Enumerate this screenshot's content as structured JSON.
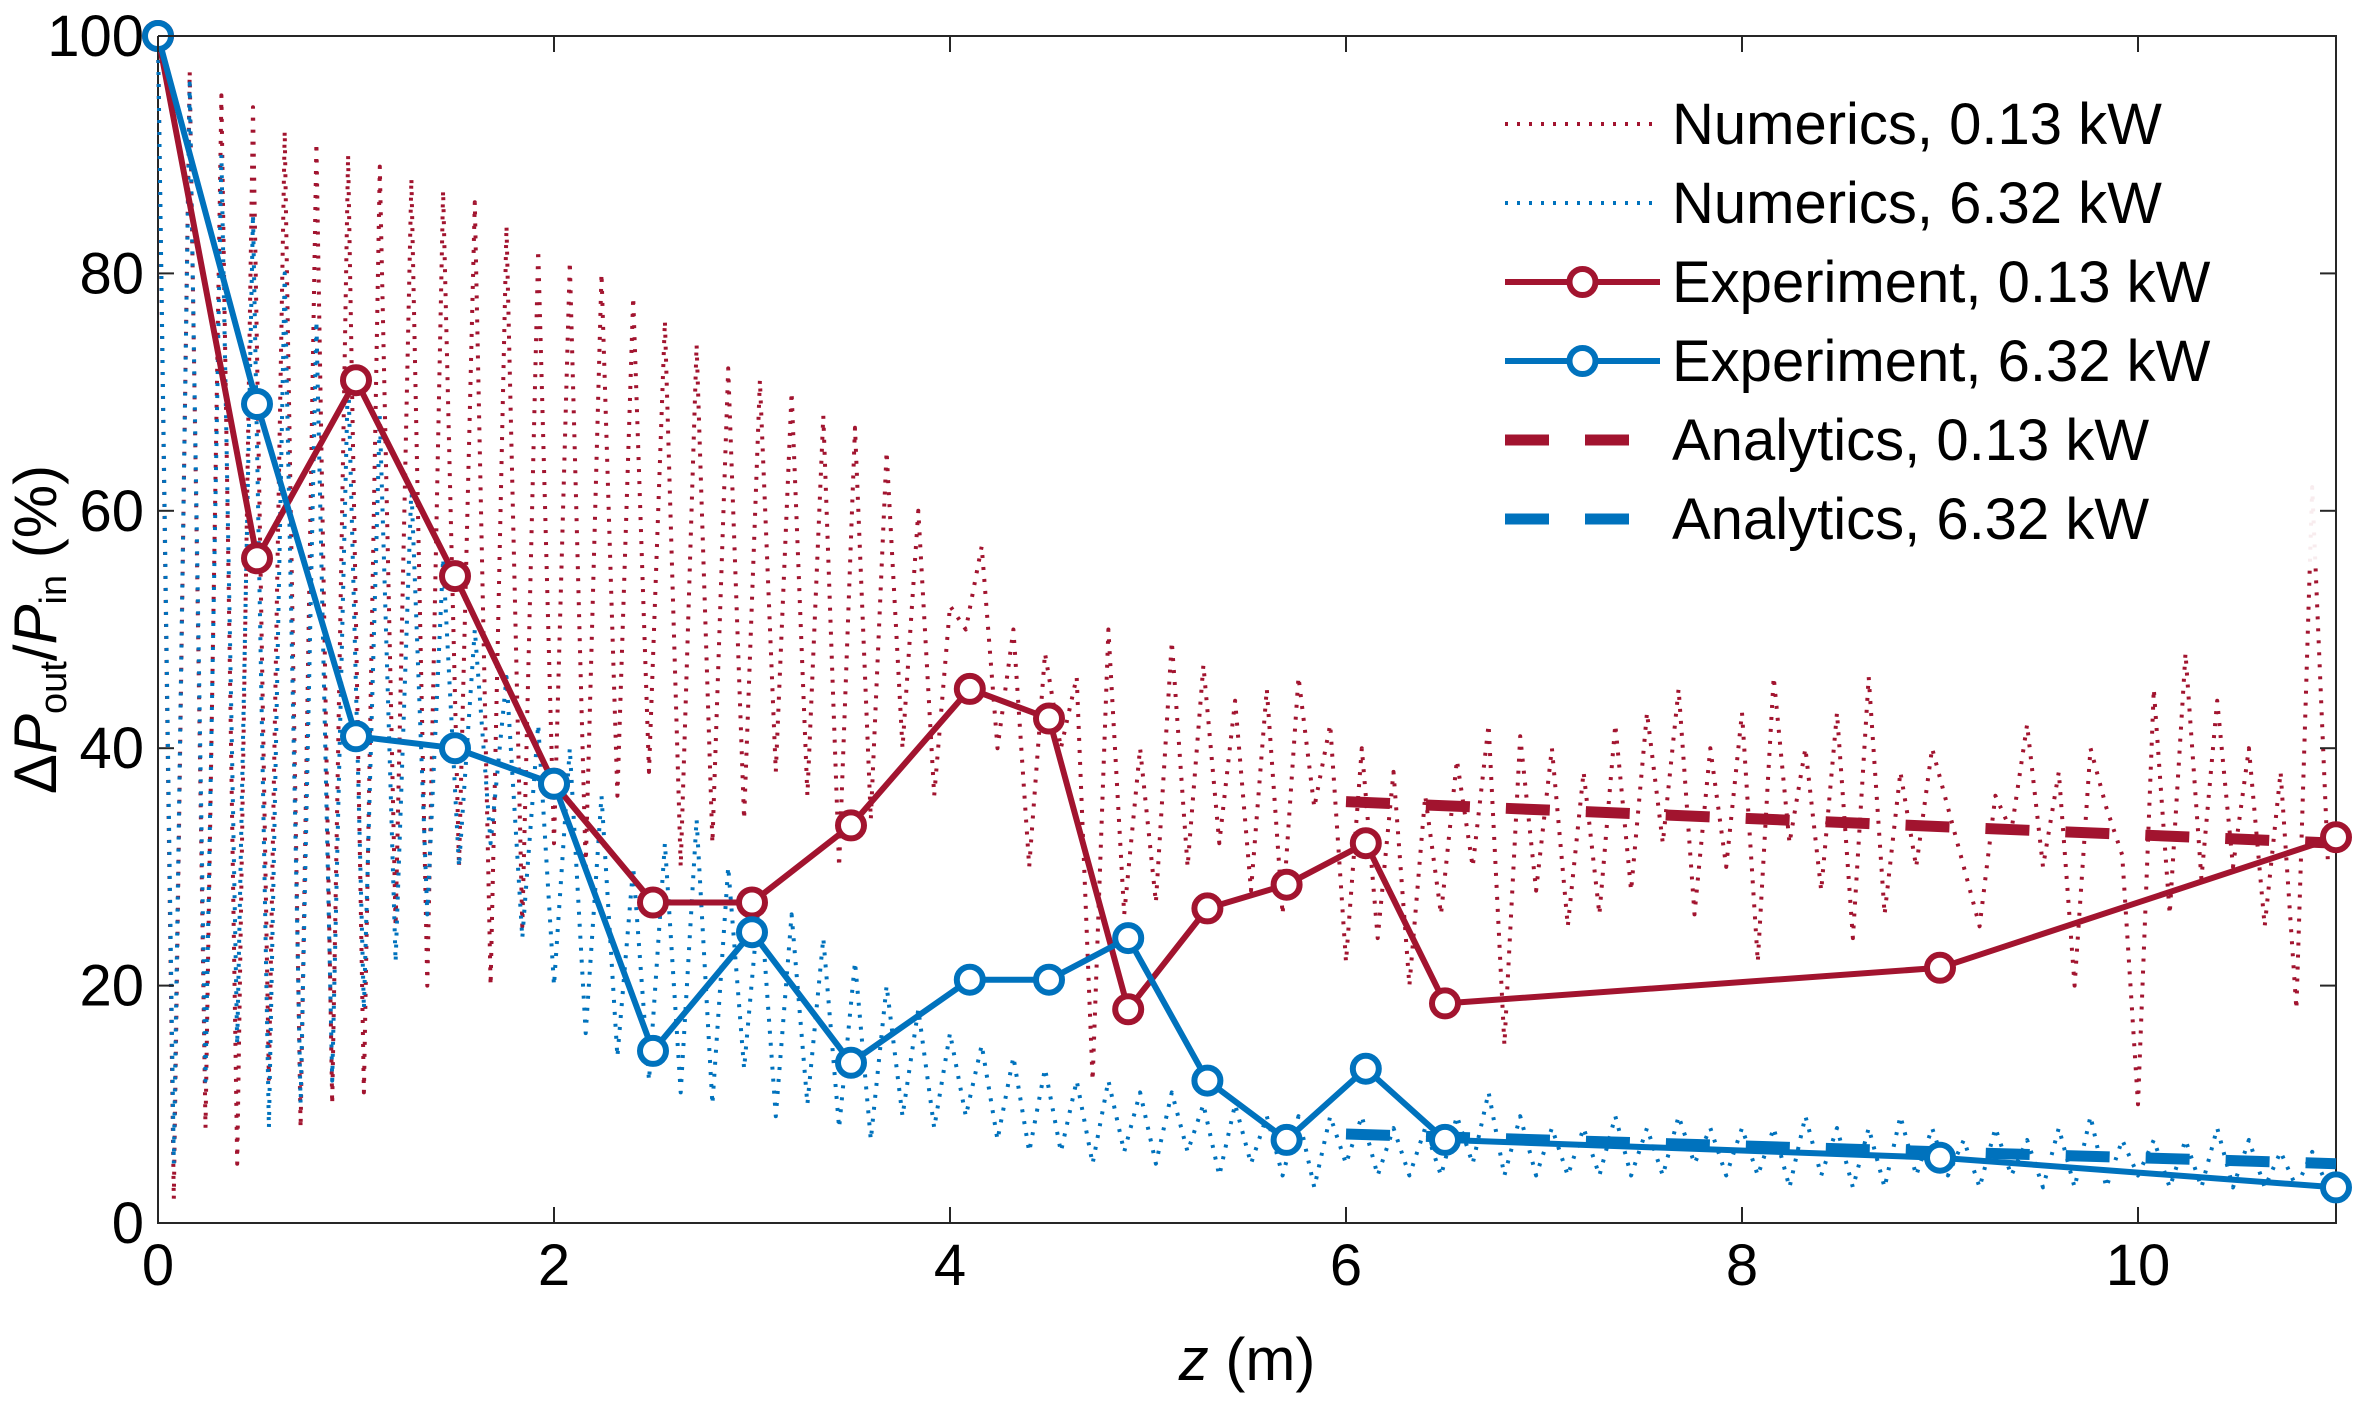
{
  "chart_data": {
    "type": "line",
    "xlabel": {
      "var": "z",
      "rest": " (m)"
    },
    "ylabel": {
      "delta": "Δ",
      "p1": "P",
      "sub1": "out",
      "slash": "/",
      "p2": "P",
      "sub2": "in",
      "rest": " (%)"
    },
    "xlim": [
      0,
      11
    ],
    "ylim": [
      0,
      100
    ],
    "xticks": [
      0,
      2,
      4,
      6,
      8,
      10
    ],
    "yticks": [
      0,
      20,
      40,
      60,
      80,
      100
    ],
    "grid": false,
    "legend_position": "top-right",
    "colors": {
      "red": "#a2142f",
      "blue": "#0072bd"
    },
    "series": [
      {
        "name": "Numerics, 0.13 kW",
        "style": "dotted",
        "color": "#a2142f",
        "x": [
          0,
          0.08,
          0.16,
          0.24,
          0.32,
          0.4,
          0.48,
          0.56,
          0.64,
          0.72,
          0.8,
          0.88,
          0.96,
          1.04,
          1.12,
          1.2,
          1.28,
          1.36,
          1.44,
          1.52,
          1.6,
          1.68,
          1.76,
          1.84,
          1.92,
          2.0,
          2.08,
          2.16,
          2.24,
          2.32,
          2.4,
          2.48,
          2.56,
          2.64,
          2.72,
          2.8,
          2.88,
          2.96,
          3.04,
          3.12,
          3.2,
          3.28,
          3.36,
          3.44,
          3.52,
          3.6,
          3.68,
          3.76,
          3.84,
          3.92,
          4.0,
          4.08,
          4.16,
          4.24,
          4.32,
          4.4,
          4.48,
          4.56,
          4.64,
          4.72,
          4.8,
          4.88,
          4.96,
          5.04,
          5.12,
          5.2,
          5.28,
          5.36,
          5.44,
          5.52,
          5.6,
          5.68,
          5.76,
          5.84,
          5.92,
          6.0,
          6.08,
          6.16,
          6.24,
          6.32,
          6.4,
          6.48,
          6.56,
          6.64,
          6.72,
          6.8,
          6.88,
          6.96,
          7.04,
          7.12,
          7.2,
          7.28,
          7.36,
          7.44,
          7.52,
          7.6,
          7.68,
          7.76,
          7.84,
          7.92,
          8.0,
          8.08,
          8.16,
          8.24,
          8.32,
          8.4,
          8.48,
          8.56,
          8.64,
          8.72,
          8.8,
          8.88,
          8.96,
          9.04,
          9.12,
          9.2,
          9.28,
          9.36,
          9.44,
          9.52,
          9.6,
          9.68,
          9.76,
          9.84,
          9.92,
          10.0,
          10.08,
          10.16,
          10.24,
          10.32,
          10.4,
          10.48,
          10.56,
          10.64,
          10.72,
          10.8,
          10.88,
          10.96
        ],
        "y": [
          100,
          2,
          97,
          8,
          95,
          5,
          94,
          12,
          92,
          8,
          91,
          10,
          90,
          11,
          89,
          25,
          88,
          20,
          87,
          30,
          86,
          20,
          84,
          25,
          82,
          32,
          81,
          30,
          80,
          36,
          78,
          38,
          76,
          30,
          74,
          32,
          72,
          34,
          71,
          38,
          70,
          36,
          68,
          30,
          67,
          34,
          65,
          40,
          60,
          36,
          52,
          50,
          57,
          40,
          50,
          30,
          48,
          40,
          46,
          12,
          50,
          26,
          40,
          27,
          49,
          30,
          47,
          32,
          44,
          28,
          45,
          26,
          46,
          35,
          42,
          22,
          40,
          24,
          38,
          20,
          36,
          26,
          39,
          30,
          42,
          15,
          41,
          28,
          40,
          25,
          38,
          26,
          42,
          28,
          43,
          32,
          45,
          26,
          40,
          30,
          43,
          22,
          46,
          32,
          40,
          28,
          43,
          24,
          46,
          26,
          38,
          30,
          40,
          35,
          30,
          25,
          36,
          33,
          42,
          30,
          38,
          20,
          40,
          35,
          31,
          10,
          45,
          26,
          48,
          29,
          44,
          30,
          40,
          25,
          38,
          18,
          62,
          30
        ]
      },
      {
        "name": "Numerics, 6.32 kW",
        "style": "dotted",
        "color": "#0072bd",
        "x": [
          0,
          0.08,
          0.16,
          0.24,
          0.32,
          0.4,
          0.48,
          0.56,
          0.64,
          0.72,
          0.8,
          0.88,
          0.96,
          1.04,
          1.12,
          1.2,
          1.28,
          1.36,
          1.44,
          1.52,
          1.6,
          1.68,
          1.76,
          1.84,
          1.92,
          2.0,
          2.08,
          2.16,
          2.24,
          2.32,
          2.4,
          2.48,
          2.56,
          2.64,
          2.72,
          2.8,
          2.88,
          2.96,
          3.04,
          3.12,
          3.2,
          3.28,
          3.36,
          3.44,
          3.52,
          3.6,
          3.68,
          3.76,
          3.84,
          3.92,
          4.0,
          4.08,
          4.16,
          4.24,
          4.32,
          4.4,
          4.48,
          4.56,
          4.64,
          4.72,
          4.8,
          4.88,
          4.96,
          5.04,
          5.12,
          5.2,
          5.28,
          5.36,
          5.44,
          5.52,
          5.6,
          5.68,
          5.76,
          5.84,
          5.92,
          6.0,
          6.08,
          6.16,
          6.24,
          6.32,
          6.4,
          6.48,
          6.56,
          6.64,
          6.72,
          6.8,
          6.88,
          6.96,
          7.04,
          7.12,
          7.2,
          7.28,
          7.36,
          7.44,
          7.52,
          7.6,
          7.68,
          7.76,
          7.84,
          7.92,
          8.0,
          8.08,
          8.16,
          8.24,
          8.32,
          8.4,
          8.48,
          8.56,
          8.64,
          8.72,
          8.8,
          8.88,
          8.96,
          9.04,
          9.12,
          9.2,
          9.28,
          9.36,
          9.44,
          9.52,
          9.6,
          9.68,
          9.76,
          9.84,
          9.92,
          10.0,
          10.08,
          10.16,
          10.24,
          10.32,
          10.4,
          10.48,
          10.56,
          10.64,
          10.72,
          10.8,
          10.88,
          10.96
        ],
        "y": [
          100,
          5,
          96,
          12,
          90,
          15,
          85,
          8,
          80,
          10,
          76,
          12,
          72,
          18,
          68,
          22,
          62,
          26,
          56,
          30,
          50,
          32,
          46,
          24,
          42,
          20,
          40,
          16,
          36,
          14,
          30,
          12,
          32,
          11,
          34,
          10,
          30,
          13,
          28,
          9,
          26,
          10,
          24,
          8,
          22,
          7,
          20,
          9,
          18,
          8,
          16,
          9,
          15,
          7,
          14,
          6,
          13,
          6,
          12,
          5,
          12,
          6,
          11,
          5,
          11,
          6,
          10,
          4,
          10,
          5,
          9,
          4,
          9,
          3,
          9,
          5,
          9,
          4,
          8,
          4,
          8,
          4,
          9,
          5,
          11,
          4,
          9,
          4,
          8,
          4,
          8,
          4,
          9,
          4,
          8,
          4,
          9,
          5,
          8,
          4,
          8,
          4,
          8,
          3,
          9,
          4,
          8,
          3,
          8,
          3,
          9,
          4,
          8,
          4,
          7,
          3,
          8,
          4,
          7,
          3,
          8,
          3,
          9,
          3,
          7,
          4,
          7,
          3,
          7,
          3,
          8,
          3,
          7,
          3,
          6,
          3,
          6,
          3
        ]
      },
      {
        "name": "Experiment, 0.13 kW",
        "style": "solid-marker",
        "color": "#a2142f",
        "x": [
          0,
          0.5,
          1.0,
          1.5,
          2.0,
          2.5,
          3.0,
          3.5,
          4.1,
          4.5,
          4.9,
          5.3,
          5.7,
          6.1,
          6.5,
          9.0,
          11.0
        ],
        "y": [
          100,
          56,
          71,
          54.5,
          37,
          27,
          27,
          33.5,
          45,
          42.5,
          18,
          26.5,
          28.5,
          32,
          18.5,
          21.5,
          32.5
        ]
      },
      {
        "name": "Experiment, 6.32 kW",
        "style": "solid-marker",
        "color": "#0072bd",
        "x": [
          0,
          0.5,
          1.0,
          1.5,
          2.0,
          2.5,
          3.0,
          3.5,
          4.1,
          4.5,
          4.9,
          5.3,
          5.7,
          6.1,
          6.5,
          9.0,
          11.0
        ],
        "y": [
          100,
          69,
          41,
          40,
          37,
          14.5,
          24.5,
          13.5,
          20.5,
          20.5,
          24,
          12,
          7,
          13,
          7,
          5.5,
          3
        ]
      },
      {
        "name": "Analytics, 0.13 kW",
        "style": "dashed",
        "color": "#a2142f",
        "x": [
          6.0,
          11.0
        ],
        "y": [
          35.5,
          32
        ]
      },
      {
        "name": "Analytics, 6.32 kW",
        "style": "dashed",
        "color": "#0072bd",
        "x": [
          6.0,
          11.0
        ],
        "y": [
          7.5,
          5.0
        ]
      }
    ]
  }
}
